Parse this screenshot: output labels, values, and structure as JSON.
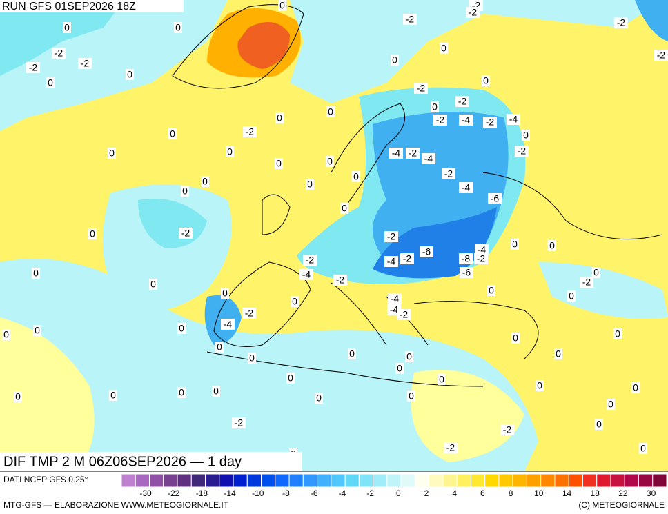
{
  "header": {
    "run": "RUN GFS 01SEP2026 18Z"
  },
  "map": {
    "title": "DIF TMP 2 M 06Z06SEP2026 — 1 day",
    "contour_labels": [
      0,
      0,
      0,
      -2,
      -2,
      -2,
      -2,
      -2,
      -2,
      -2,
      0,
      0,
      0,
      0,
      -2,
      0,
      -2,
      0,
      0,
      -2,
      0,
      0,
      -2,
      -2,
      -4,
      -2,
      -4,
      0,
      0,
      0,
      0,
      0,
      -4,
      -2,
      -4,
      -2,
      -2,
      0,
      0,
      0,
      0,
      -4,
      -6,
      0,
      0,
      -2,
      -2,
      -4,
      0,
      0,
      -2,
      -4,
      -2,
      -6,
      -8,
      -2,
      -6,
      -4,
      -2,
      0,
      0,
      -2,
      0,
      0,
      0,
      0,
      0,
      -4,
      -4,
      -2,
      -2,
      -4,
      0,
      0,
      0,
      0,
      0,
      0,
      0,
      0,
      0,
      0,
      0,
      0,
      0,
      0,
      0,
      0,
      0,
      0,
      0,
      0,
      0,
      0,
      -2,
      0,
      -2,
      0,
      -2,
      0
    ]
  },
  "legend": {
    "source": "DATI NCEP GFS 0.25°",
    "colors": [
      "#c080d0",
      "#a868c0",
      "#9050a8",
      "#784090",
      "#603080",
      "#402878",
      "#281c90",
      "#1010b0",
      "#0020d0",
      "#0038e0",
      "#0050f0",
      "#1068ff",
      "#2080ff",
      "#3098ff",
      "#40b0ff",
      "#50c8ff",
      "#60d8f8",
      "#80e4f8",
      "#a0ecf8",
      "#c0f4f8",
      "#e0fafa",
      "#fffff0",
      "#fffac0",
      "#fff590",
      "#fff060",
      "#ffe830",
      "#ffd800",
      "#ffc800",
      "#ffb400",
      "#ffa000",
      "#ff8800",
      "#ff7000",
      "#ff5000",
      "#f03020",
      "#e01830",
      "#c81040",
      "#b00848",
      "#980840",
      "#800838"
    ],
    "ticks": [
      -30,
      -22,
      -18,
      -14,
      -10,
      -8,
      -6,
      -4,
      -2,
      0,
      2,
      4,
      6,
      8,
      10,
      14,
      18,
      22,
      30
    ]
  },
  "footer": {
    "left": "MTG-GFS — ELABORAZIONE WWW.METEOGIORNALE.IT",
    "right": "(C) METEOGIORNALE"
  }
}
